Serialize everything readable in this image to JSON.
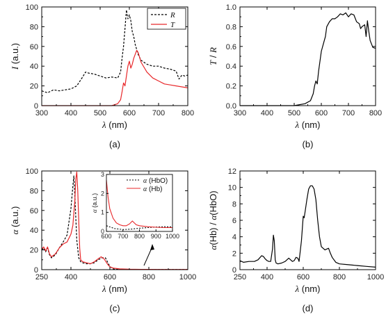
{
  "chart_data": [
    {
      "panel": "(a)",
      "type": "line",
      "xlabel": "λ (nm)",
      "ylabel": "I (a.u.)",
      "xlim": [
        300,
        800
      ],
      "ylim": [
        0,
        100
      ],
      "xticks": [
        300,
        400,
        500,
        600,
        700,
        800
      ],
      "yticks": [
        0,
        20,
        40,
        60,
        80,
        100
      ],
      "legend_position": "top-right",
      "series": [
        {
          "name": "R",
          "color": "#000000",
          "dash": "dashed",
          "x": [
            300,
            320,
            340,
            360,
            380,
            400,
            420,
            440,
            450,
            460,
            480,
            500,
            520,
            540,
            560,
            570,
            575,
            580,
            585,
            590,
            595,
            600,
            605,
            610,
            615,
            620,
            630,
            640,
            660,
            680,
            700,
            720,
            740,
            760,
            770,
            780,
            790,
            800
          ],
          "y": [
            15,
            13,
            16,
            15,
            16,
            17,
            20,
            29,
            34,
            33,
            32,
            30,
            28,
            29,
            28,
            34,
            48,
            60,
            78,
            97,
            88,
            92,
            86,
            75,
            70,
            62,
            52,
            46,
            42,
            40,
            40,
            38,
            37,
            35,
            27,
            31,
            30,
            31
          ]
        },
        {
          "name": "T",
          "color": "#e8272a",
          "dash": "solid",
          "x": [
            300,
            540,
            560,
            570,
            575,
            580,
            585,
            590,
            595,
            600,
            605,
            610,
            615,
            620,
            625,
            630,
            640,
            660,
            680,
            700,
            720,
            740,
            760,
            780,
            800
          ],
          "y": [
            0,
            0,
            2,
            6,
            14,
            23,
            20,
            30,
            40,
            45,
            38,
            42,
            48,
            52,
            56,
            54,
            44,
            34,
            28,
            25,
            22,
            21,
            20,
            19,
            18
          ]
        }
      ]
    },
    {
      "panel": "(b)",
      "type": "line",
      "xlabel": "λ (nm)",
      "ylabel": "T / R",
      "xlim": [
        300,
        800
      ],
      "ylim": [
        0,
        1.0
      ],
      "xticks": [
        300,
        400,
        500,
        600,
        700,
        800
      ],
      "yticks": [
        0.0,
        0.2,
        0.4,
        0.6,
        0.8,
        1.0
      ],
      "series": [
        {
          "color": "#000000",
          "dash": "solid",
          "x": [
            300,
            400,
            500,
            540,
            560,
            570,
            575,
            580,
            585,
            590,
            600,
            610,
            615,
            620,
            630,
            640,
            650,
            660,
            670,
            680,
            690,
            700,
            710,
            720,
            730,
            740,
            745,
            750,
            760,
            765,
            770,
            775,
            780,
            790,
            800
          ],
          "y": [
            0,
            0,
            0,
            0.02,
            0.05,
            0.12,
            0.2,
            0.25,
            0.22,
            0.35,
            0.55,
            0.65,
            0.7,
            0.8,
            0.85,
            0.88,
            0.88,
            0.9,
            0.93,
            0.92,
            0.94,
            0.9,
            0.93,
            0.92,
            0.85,
            0.83,
            0.78,
            0.8,
            0.82,
            0.7,
            0.86,
            0.75,
            0.66,
            0.59,
            0.58
          ]
        }
      ]
    },
    {
      "panel": "(c)",
      "type": "line",
      "xlabel": "λ (nm)",
      "ylabel": "α (a.u.)",
      "xlim": [
        250,
        1000
      ],
      "ylim": [
        0,
        100
      ],
      "xticks": [
        250,
        400,
        600,
        800,
        1000
      ],
      "yticks": [
        0,
        20,
        40,
        60,
        80,
        100
      ],
      "series": [
        {
          "name": "α (HbO)",
          "color": "#000000",
          "dash": "dashed",
          "x": [
            250,
            260,
            270,
            280,
            290,
            300,
            320,
            340,
            360,
            380,
            400,
            410,
            415,
            420,
            430,
            440,
            450,
            460,
            480,
            500,
            520,
            540,
            560,
            577,
            600,
            620,
            650,
            700,
            800,
            900,
            1000
          ],
          "y": [
            20,
            22,
            18,
            22,
            15,
            12,
            15,
            22,
            28,
            35,
            62,
            85,
            95,
            75,
            30,
            12,
            8,
            7,
            6,
            6,
            7,
            10,
            12,
            12,
            3,
            0.5,
            0.3,
            0.2,
            0.2,
            0.2,
            0.2
          ]
        },
        {
          "name": "α (Hb)",
          "color": "#e8272a",
          "dash": "solid",
          "x": [
            250,
            260,
            270,
            280,
            290,
            300,
            320,
            340,
            360,
            380,
            400,
            410,
            420,
            425,
            430,
            435,
            440,
            445,
            450,
            460,
            480,
            500,
            520,
            540,
            555,
            570,
            590,
            600,
            620,
            650,
            700,
            760,
            800,
            900,
            1000
          ],
          "y": [
            21,
            23,
            19,
            23,
            16,
            13,
            16,
            22,
            26,
            28,
            36,
            45,
            70,
            92,
            99,
            80,
            50,
            22,
            10,
            8,
            7,
            6,
            8,
            11,
            13,
            11,
            5,
            2.8,
            1.5,
            0.8,
            0.4,
            0.3,
            0.3,
            0.2,
            0.2
          ]
        }
      ],
      "inset": {
        "xlim": [
          600,
          1000
        ],
        "ylim": [
          0,
          3
        ],
        "xticks": [
          600,
          700,
          800,
          900,
          1000
        ],
        "yticks": [
          0,
          1,
          2,
          3
        ],
        "ylabel": "α (a.u.)",
        "series": [
          {
            "name": "α (HbO)",
            "color": "#000000",
            "dash": "dashed",
            "x": [
              600,
              650,
              700,
              750,
              800,
              850,
              900,
              950,
              1000
            ],
            "y": [
              0.3,
              0.15,
              0.1,
              0.12,
              0.17,
              0.2,
              0.23,
              0.25,
              0.24
            ]
          },
          {
            "name": "α (Hb)",
            "color": "#e8272a",
            "dash": "solid",
            "x": [
              600,
              610,
              620,
              640,
              660,
              680,
              700,
              720,
              740,
              757,
              780,
              800,
              850,
              900,
              950,
              1000
            ],
            "y": [
              2.7,
              1.8,
              1.2,
              0.7,
              0.45,
              0.35,
              0.3,
              0.3,
              0.4,
              0.55,
              0.35,
              0.3,
              0.25,
              0.22,
              0.2,
              0.2
            ]
          }
        ]
      }
    },
    {
      "panel": "(d)",
      "type": "line",
      "xlabel": "λ (nm)",
      "ylabel": "α(Hb) / α(HbO)",
      "xlim": [
        250,
        1000
      ],
      "ylim": [
        0,
        12
      ],
      "xticks": [
        250,
        400,
        600,
        800,
        1000
      ],
      "yticks": [
        0,
        2,
        4,
        6,
        8,
        10,
        12
      ],
      "series": [
        {
          "color": "#000000",
          "dash": "solid",
          "x": [
            250,
            270,
            300,
            330,
            350,
            370,
            380,
            390,
            400,
            410,
            420,
            430,
            435,
            440,
            445,
            450,
            460,
            480,
            500,
            520,
            530,
            540,
            550,
            560,
            570,
            577,
            590,
            600,
            605,
            610,
            620,
            630,
            640,
            650,
            660,
            670,
            680,
            690,
            700,
            720,
            740,
            750,
            760,
            780,
            800,
            850,
            900,
            950,
            1000
          ],
          "y": [
            1.1,
            0.9,
            1.0,
            1.0,
            1.2,
            1.7,
            1.6,
            1.3,
            1.1,
            1.0,
            1.0,
            2.5,
            4.2,
            3.5,
            1.2,
            0.8,
            0.7,
            0.8,
            1.0,
            1.4,
            1.2,
            1.0,
            1.1,
            1.5,
            1.4,
            1.0,
            3.5,
            6.5,
            6.3,
            7.0,
            8.5,
            9.8,
            10.2,
            10.2,
            9.8,
            8.5,
            6.0,
            4.0,
            2.8,
            2.4,
            2.6,
            2.0,
            1.5,
            0.9,
            0.7,
            0.6,
            0.5,
            0.4,
            0.3
          ]
        }
      ]
    }
  ]
}
